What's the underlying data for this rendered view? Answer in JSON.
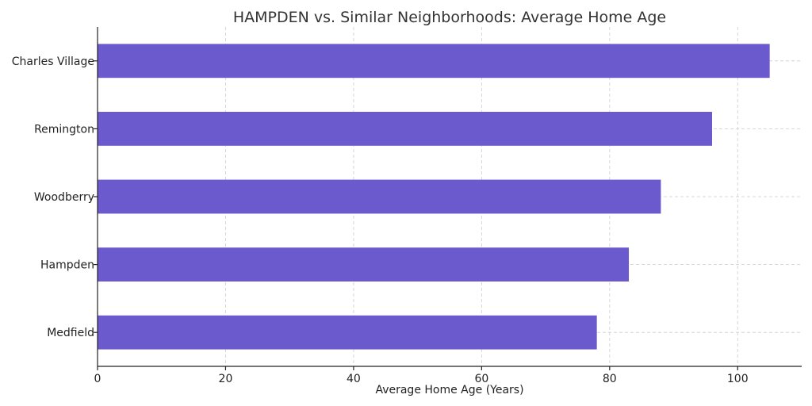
{
  "chart_data": {
    "type": "bar",
    "orientation": "horizontal",
    "title": "HAMPDEN vs. Similar Neighborhoods: Average Home Age",
    "xlabel": "Average Home Age (Years)",
    "ylabel": "",
    "categories": [
      "Charles Village",
      "Remington",
      "Woodberry",
      "Hampden",
      "Medfield"
    ],
    "values": [
      105,
      96,
      88,
      83,
      78
    ],
    "xlim": [
      0,
      110
    ],
    "xticks": [
      0,
      20,
      40,
      60,
      80,
      100
    ],
    "grid": true,
    "bar_color": "#6a5acd"
  }
}
